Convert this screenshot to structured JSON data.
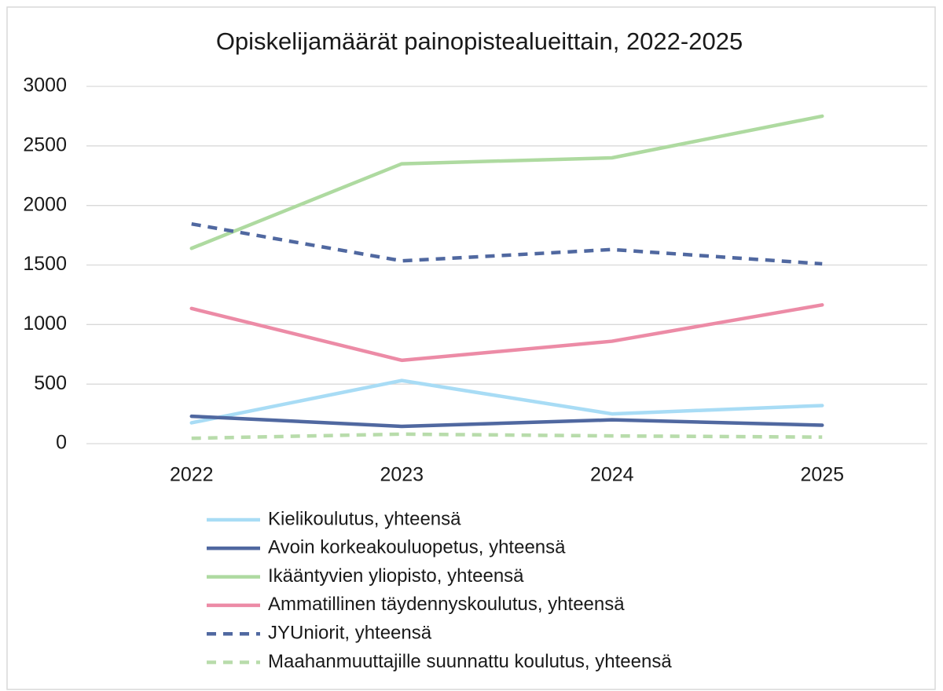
{
  "chart_data": {
    "type": "line",
    "title": "Opiskelijamäärät painopistealueittain, 2022-2025",
    "categories": [
      "2022",
      "2023",
      "2024",
      "2025"
    ],
    "series": [
      {
        "name": "Kielikoulutus, yhteensä",
        "color": "#a8dcf5",
        "style": "solid",
        "values": [
          175,
          530,
          250,
          320
        ]
      },
      {
        "name": "Avoin korkeakouluopetus, yhteensä",
        "color": "#5068a0",
        "style": "solid",
        "values": [
          230,
          145,
          200,
          155
        ]
      },
      {
        "name": "Ikääntyvien yliopisto, yhteensä",
        "color": "#aedaa0",
        "style": "solid",
        "values": [
          1640,
          2350,
          2400,
          2750
        ]
      },
      {
        "name": "Ammatillinen täydennyskoulutus, yhteensä",
        "color": "#ec8ba6",
        "style": "solid",
        "values": [
          1135,
          700,
          860,
          1165
        ]
      },
      {
        "name": "JYUniorit, yhteensä",
        "color": "#5068a0",
        "style": "dashed",
        "values": [
          1845,
          1535,
          1630,
          1510
        ]
      },
      {
        "name": "Maahanmuuttajille suunnattu koulutus, yhteensä",
        "color": "#b8dcab",
        "style": "dashed",
        "values": [
          45,
          80,
          65,
          55
        ]
      }
    ],
    "ylim": [
      0,
      3000
    ],
    "yticks": [
      0,
      500,
      1000,
      1500,
      2000,
      2500,
      3000
    ],
    "grid": true,
    "legend": "bottom"
  }
}
